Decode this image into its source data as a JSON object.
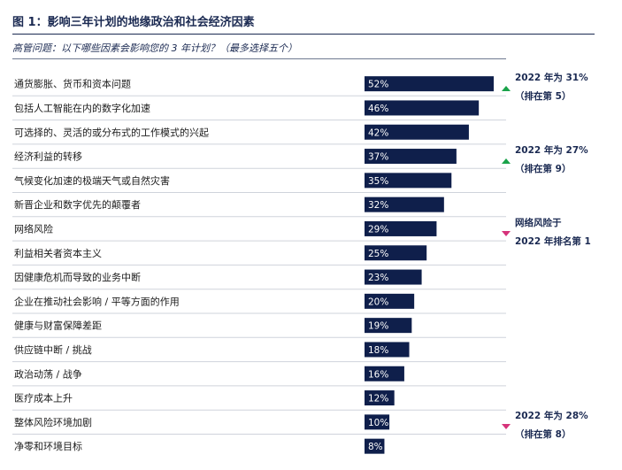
{
  "title": "图 1：影响三年计划的地缘政治和社会经济因素",
  "question": "高管问题：以下哪些因素会影响您的 3 年计划？（最多选择五个）",
  "chart_data": {
    "type": "bar",
    "orientation": "horizontal",
    "categories": [
      "通货膨胀、货币和资本问题",
      "包括人工智能在内的数字化加速",
      "可选择的、灵活的或分布式的工作模式的兴起",
      "经济利益的转移",
      "气候变化加速的极端天气或自然灾害",
      "新晋企业和数字优先的颠覆者",
      "网络风险",
      "利益相关者资本主义",
      "因健康危机而导致的业务中断",
      "企业在推动社会影响 / 平等方面的作用",
      "健康与财富保障差距",
      "供应链中断 / 挑战",
      "政治动荡 / 战争",
      "医疗成本上升",
      "整体风险环境加剧",
      "净零和环境目标"
    ],
    "values": [
      52,
      46,
      42,
      37,
      35,
      32,
      29,
      25,
      23,
      20,
      19,
      18,
      16,
      12,
      10,
      8
    ],
    "value_labels": [
      "52%",
      "46%",
      "42%",
      "37%",
      "35%",
      "32%",
      "29%",
      "25%",
      "23%",
      "20%",
      "19%",
      "18%",
      "16%",
      "12%",
      "10%",
      "8%"
    ],
    "xlim": [
      0,
      52
    ],
    "bar_color": "#0f1f4b",
    "annotations": [
      {
        "row": 0,
        "direction": "up",
        "color": "#1aa34a",
        "lines": [
          "2022 年为 31%",
          "（排在第 5）"
        ]
      },
      {
        "row": 3,
        "direction": "up",
        "color": "#1aa34a",
        "lines": [
          "2022 年为 27%",
          "（排在第 9）"
        ]
      },
      {
        "row": 6,
        "direction": "down",
        "color": "#d6337a",
        "lines": [
          "网络风险于",
          "2022 年排名第 1"
        ]
      },
      {
        "row": 14,
        "direction": "down",
        "color": "#d6337a",
        "lines": [
          "2022 年为 28%",
          "（排在第 8）"
        ]
      }
    ]
  }
}
